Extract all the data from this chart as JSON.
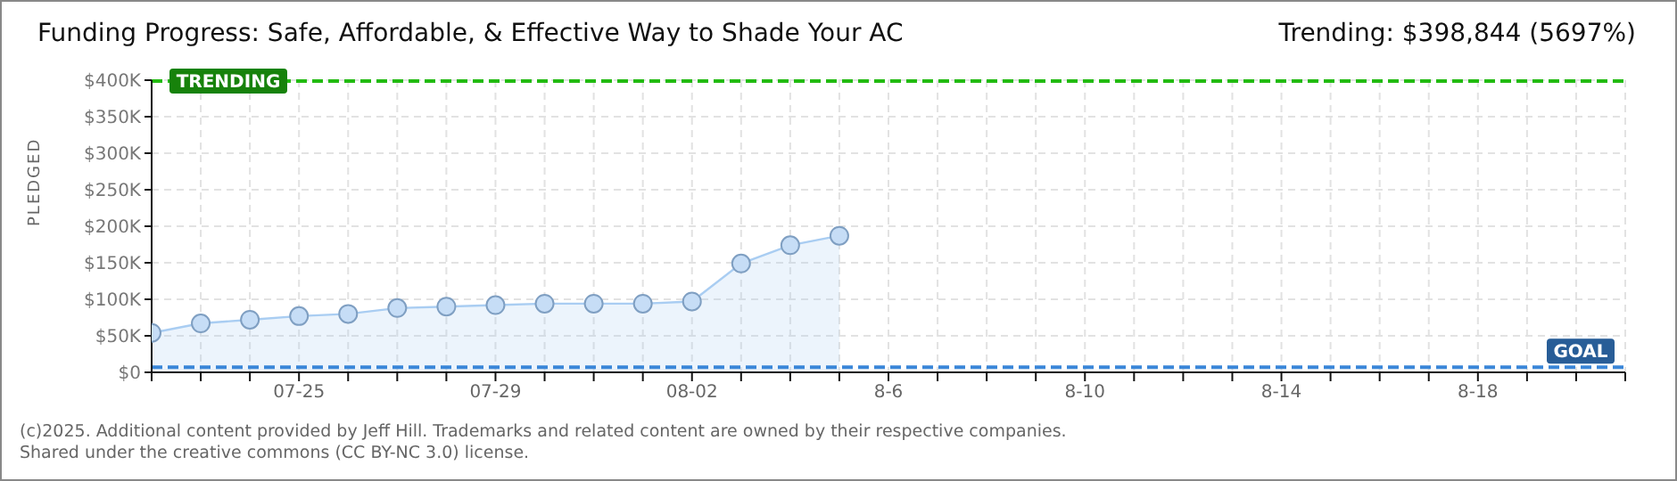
{
  "chart_data": {
    "type": "area",
    "title": "Funding Progress: Safe, Affordable, & Effective Way to Shade Your AC",
    "subtitle": "Trending: $398,844 (5697%)",
    "ylabel": "PLEDGED",
    "categories": [
      null,
      null,
      null,
      "07-25",
      null,
      null,
      null,
      "07-29",
      null,
      null,
      null,
      "08-02",
      null,
      null,
      null,
      "8-6",
      null,
      null,
      null,
      "8-10",
      null,
      null,
      null,
      "8-14",
      null,
      null,
      null,
      "8-18",
      null,
      null,
      null
    ],
    "series": [
      {
        "color": "#a9cdf2",
        "values": [
          54000,
          67000,
          72000,
          77000,
          80000,
          88000,
          90000,
          92000,
          94000,
          94000,
          94000,
          97000,
          149000,
          174000,
          187000,
          null,
          null,
          null,
          null,
          null,
          null,
          null,
          null,
          null,
          null,
          null,
          null,
          null,
          null,
          null,
          null
        ]
      }
    ],
    "ylim": [
      0,
      400000
    ],
    "yticks": [
      {
        "value": 0,
        "label": "$0"
      },
      {
        "value": 50000,
        "label": "$50K"
      },
      {
        "value": 100000,
        "label": "$100K"
      },
      {
        "value": 150000,
        "label": "$150K"
      },
      {
        "value": 200000,
        "label": "$200K"
      },
      {
        "value": 250000,
        "label": "$250K"
      },
      {
        "value": 300000,
        "label": "$300K"
      },
      {
        "value": 350000,
        "label": "$350K"
      },
      {
        "value": 400000,
        "label": "$400K"
      }
    ],
    "ref_lines": [
      {
        "axis": "y",
        "value": 398844,
        "label": "TRENDING",
        "color": "#22bb11",
        "line_style": "dashed"
      },
      {
        "axis": "y",
        "value": 7000,
        "label": "GOAL",
        "color": "#3a86d8",
        "line_style": "dashed"
      }
    ],
    "grid": true,
    "marker": "circle",
    "legend": false,
    "annotations": [
      "(c)2025. Additional content provided by Jeff Hill. Trademarks and related content are owned by their respective companies.",
      "Shared under the creative commons (CC BY-NC 3.0) license."
    ]
  }
}
